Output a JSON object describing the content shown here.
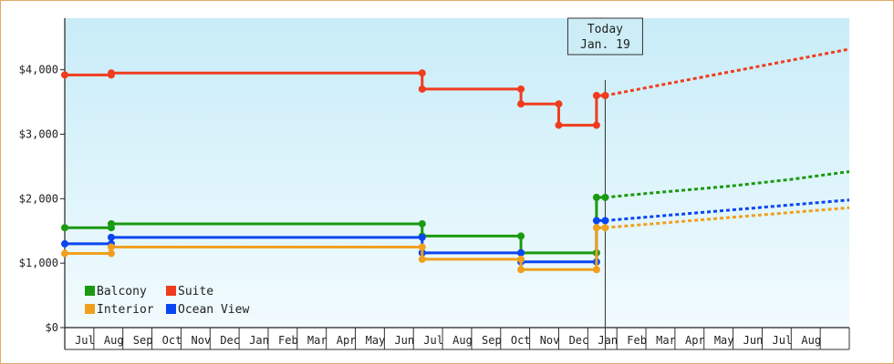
{
  "chart_data": {
    "type": "line",
    "title": "",
    "xlabel": "",
    "ylabel": "",
    "ylim": [
      0,
      4800
    ],
    "yticks": [
      {
        "value": 0,
        "label": "$0"
      },
      {
        "value": 1000,
        "label": "$1,000"
      },
      {
        "value": 2000,
        "label": "$2,000"
      },
      {
        "value": 3000,
        "label": "$3,000"
      },
      {
        "value": 4000,
        "label": "$4,000"
      }
    ],
    "x_axis_months": [
      "Jul",
      "Aug",
      "Sep",
      "Oct",
      "Nov",
      "Dec",
      "Jan",
      "Feb",
      "Mar",
      "Apr",
      "May",
      "Jun",
      "Jul",
      "Aug",
      "Sep",
      "Oct",
      "Nov",
      "Dec",
      "Jan",
      "Feb",
      "Mar",
      "Apr",
      "May",
      "Jun",
      "Jul",
      "Aug"
    ],
    "x_range_months": [
      0,
      27
    ],
    "grid": "vertical",
    "legend_position": "bottom-left",
    "today": {
      "line1": "Today",
      "line2": "Jan. 19",
      "x": 18.6
    },
    "series": [
      {
        "name": "Suite",
        "color": "#f03c1e",
        "history": [
          [
            0,
            3920
          ],
          [
            1.6,
            3920
          ],
          [
            1.6,
            3950
          ],
          [
            12.3,
            3950
          ],
          [
            12.3,
            3700
          ],
          [
            15.7,
            3700
          ],
          [
            15.7,
            3470
          ],
          [
            17,
            3470
          ],
          [
            17,
            3140
          ],
          [
            18.3,
            3140
          ],
          [
            18.3,
            3600
          ],
          [
            18.6,
            3600
          ]
        ],
        "points": [
          [
            0,
            3920
          ],
          [
            1.6,
            3920
          ],
          [
            1.6,
            3950
          ],
          [
            12.3,
            3950
          ],
          [
            12.3,
            3700
          ],
          [
            15.7,
            3700
          ],
          [
            15.7,
            3470
          ],
          [
            17,
            3470
          ],
          [
            17,
            3140
          ],
          [
            18.3,
            3140
          ],
          [
            18.3,
            3600
          ],
          [
            18.6,
            3600
          ]
        ],
        "forecast": [
          [
            18.6,
            3600
          ],
          [
            27,
            4320
          ]
        ]
      },
      {
        "name": "Balcony",
        "color": "#1a9a10",
        "history": [
          [
            0,
            1550
          ],
          [
            1.6,
            1550
          ],
          [
            1.6,
            1610
          ],
          [
            12.3,
            1610
          ],
          [
            12.3,
            1420
          ],
          [
            15.7,
            1420
          ],
          [
            15.7,
            1160
          ],
          [
            18.3,
            1160
          ],
          [
            18.3,
            2020
          ],
          [
            18.6,
            2020
          ]
        ],
        "points": [
          [
            0,
            1550
          ],
          [
            1.6,
            1550
          ],
          [
            1.6,
            1610
          ],
          [
            12.3,
            1610
          ],
          [
            12.3,
            1420
          ],
          [
            15.7,
            1420
          ],
          [
            15.7,
            1160
          ],
          [
            18.3,
            1160
          ],
          [
            18.3,
            2020
          ],
          [
            18.6,
            2020
          ]
        ],
        "forecast": [
          [
            18.6,
            2020
          ],
          [
            20,
            2080
          ],
          [
            23,
            2200
          ],
          [
            25,
            2300
          ],
          [
            27,
            2420
          ]
        ]
      },
      {
        "name": "Ocean View",
        "color": "#0a46f0",
        "history": [
          [
            0,
            1300
          ],
          [
            1.6,
            1300
          ],
          [
            1.6,
            1400
          ],
          [
            12.3,
            1400
          ],
          [
            12.3,
            1160
          ],
          [
            15.7,
            1160
          ],
          [
            15.7,
            1020
          ],
          [
            18.3,
            1020
          ],
          [
            18.3,
            1660
          ],
          [
            18.6,
            1660
          ]
        ],
        "points": [
          [
            0,
            1300
          ],
          [
            1.6,
            1300
          ],
          [
            1.6,
            1400
          ],
          [
            12.3,
            1400
          ],
          [
            12.3,
            1160
          ],
          [
            15.7,
            1160
          ],
          [
            15.7,
            1020
          ],
          [
            18.3,
            1020
          ],
          [
            18.3,
            1660
          ],
          [
            18.6,
            1660
          ]
        ],
        "forecast": [
          [
            18.6,
            1660
          ],
          [
            27,
            1980
          ]
        ]
      },
      {
        "name": "Interior",
        "color": "#f0a01e",
        "history": [
          [
            0,
            1150
          ],
          [
            1.6,
            1150
          ],
          [
            1.6,
            1250
          ],
          [
            12.3,
            1250
          ],
          [
            12.3,
            1060
          ],
          [
            15.7,
            1060
          ],
          [
            15.7,
            900
          ],
          [
            18.3,
            900
          ],
          [
            18.3,
            1550
          ],
          [
            18.6,
            1550
          ]
        ],
        "points": [
          [
            0,
            1150
          ],
          [
            1.6,
            1150
          ],
          [
            1.6,
            1250
          ],
          [
            12.3,
            1250
          ],
          [
            12.3,
            1060
          ],
          [
            15.7,
            1060
          ],
          [
            15.7,
            900
          ],
          [
            18.3,
            900
          ],
          [
            18.3,
            1550
          ],
          [
            18.6,
            1550
          ]
        ],
        "forecast": [
          [
            18.6,
            1550
          ],
          [
            27,
            1860
          ]
        ]
      }
    ],
    "legend_rows": [
      [
        "Balcony",
        "Suite"
      ],
      [
        "Interior",
        "Ocean View"
      ]
    ]
  }
}
